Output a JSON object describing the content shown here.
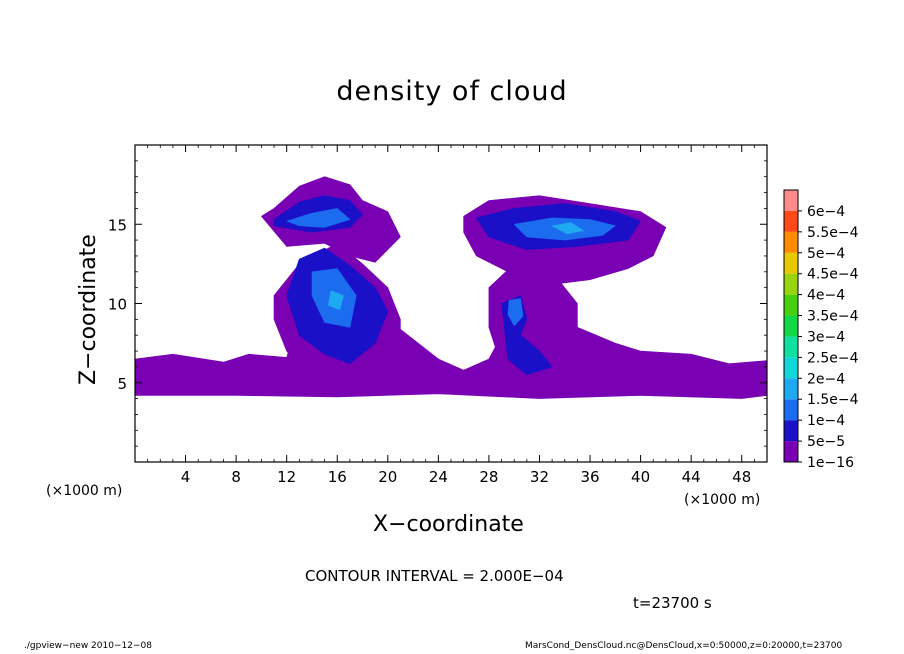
{
  "title": "density of cloud",
  "xlabel": "X−coordinate",
  "ylabel": "Z−coordinate",
  "x_unit_left": "(×1000 m)",
  "x_unit_right": "(×1000 m)",
  "contour_interval": "CONTOUR INTERVAL = 2.000E−04",
  "time_label": "t=23700 s",
  "footer_left": "./gpview−new   2010−12−08",
  "footer_right": "MarsCond_DensCloud.nc@DensCloud,x=0:50000,z=0:20000,t=23700",
  "chart_data": {
    "type": "heatmap",
    "title": "density of cloud",
    "xlabel": "X−coordinate",
    "ylabel": "Z−coordinate",
    "xlim": [
      0,
      50
    ],
    "ylim": [
      0,
      20
    ],
    "xticks": [
      4,
      8,
      12,
      16,
      20,
      24,
      28,
      32,
      36,
      40,
      44,
      48
    ],
    "yticks": [
      5,
      10,
      15
    ],
    "colorbar": {
      "labels": [
        "1e−16",
        "5e−5",
        "1e−4",
        "1.5e−4",
        "2e−4",
        "2.5e−4",
        "3e−4",
        "3.5e−4",
        "4e−4",
        "4.5e−4",
        "5e−4",
        "5.5e−4",
        "6e−4"
      ],
      "colors": [
        "#7a00b4",
        "#1a10c8",
        "#1c6cf0",
        "#1eaaf0",
        "#10d8d8",
        "#10e0a0",
        "#12d848",
        "#48d010",
        "#98d410",
        "#e8c800",
        "#ff8c00",
        "#ff4a18",
        "#ff8a8a"
      ]
    },
    "regions": [
      {
        "level": "1e−16",
        "x": [
          0,
          3,
          7,
          9,
          12,
          13,
          16,
          20,
          24,
          26,
          28,
          30,
          32,
          35,
          38,
          40,
          44,
          47,
          50,
          50,
          48,
          40,
          32,
          24,
          16,
          8,
          0
        ],
        "z": [
          6.5,
          6.8,
          6.3,
          6.8,
          6.6,
          9.5,
          10.5,
          9.0,
          6.5,
          5.8,
          6.5,
          9.5,
          8.0,
          8.5,
          7.5,
          7.0,
          6.8,
          6.2,
          6.4,
          4.2,
          4.0,
          4.2,
          4.0,
          4.3,
          4.1,
          4.2,
          4.2
        ]
      },
      {
        "level": "1e−16",
        "x": [
          11,
          13,
          15,
          17,
          18,
          20,
          21,
          19,
          17,
          15,
          12,
          10
        ],
        "z": [
          16.0,
          17.4,
          18.0,
          17.5,
          16.5,
          15.8,
          14.2,
          12.6,
          13.0,
          13.8,
          13.6,
          15.5
        ]
      },
      {
        "level": "1e−16",
        "x": [
          11,
          13,
          16,
          18,
          20,
          21,
          21,
          19,
          17,
          14,
          12,
          11
        ],
        "z": [
          10.5,
          12.5,
          13.8,
          12.5,
          11.0,
          9.0,
          6.0,
          5.0,
          4.8,
          5.2,
          7.0,
          9.0
        ]
      },
      {
        "level": "1e−16",
        "x": [
          26,
          28,
          32,
          36,
          40,
          42,
          41,
          39,
          36,
          33,
          30,
          27,
          26
        ],
        "z": [
          15.5,
          16.5,
          16.8,
          16.3,
          15.8,
          14.8,
          13.0,
          12.2,
          11.5,
          11.2,
          11.8,
          13.0,
          14.5
        ]
      },
      {
        "level": "1e−16",
        "x": [
          28,
          30,
          33,
          35,
          35,
          33,
          31,
          29,
          28
        ],
        "z": [
          11.0,
          12.5,
          12.0,
          10.0,
          7.0,
          5.5,
          5.0,
          6.0,
          8.5
        ]
      },
      {
        "level": "5e−5",
        "x": [
          11,
          13,
          15,
          17,
          18,
          17,
          14,
          11
        ],
        "z": [
          15.3,
          16.4,
          16.8,
          16.5,
          15.6,
          14.8,
          14.5,
          14.9
        ]
      },
      {
        "level": "5e−5",
        "x": [
          13,
          15,
          17,
          19,
          20,
          19,
          17,
          15,
          13,
          12
        ],
        "z": [
          12.8,
          13.5,
          12.4,
          11.0,
          9.5,
          7.5,
          6.2,
          6.8,
          8.0,
          10.5
        ]
      },
      {
        "level": "5e−5",
        "x": [
          27,
          30,
          34,
          38,
          40,
          39,
          35,
          31,
          28
        ],
        "z": [
          15.4,
          16.0,
          16.3,
          15.8,
          15.2,
          14.0,
          13.6,
          13.4,
          14.2
        ]
      },
      {
        "level": "5e−5",
        "x": [
          29,
          30.5,
          31,
          30.5,
          32,
          33,
          31,
          29.5
        ],
        "z": [
          10.0,
          10.5,
          9.0,
          8.0,
          7.0,
          6.0,
          5.5,
          6.5
        ]
      },
      {
        "level": "1e−4",
        "x": [
          12,
          14,
          16,
          17,
          15,
          13
        ],
        "z": [
          15.2,
          15.7,
          16.0,
          15.3,
          14.8,
          14.9
        ]
      },
      {
        "level": "1e−4",
        "x": [
          14,
          16,
          17.5,
          17,
          15,
          14
        ],
        "z": [
          12.0,
          12.2,
          10.5,
          8.5,
          8.8,
          10.5
        ]
      },
      {
        "level": "1e−4",
        "x": [
          30,
          33,
          36,
          38,
          37,
          34,
          31
        ],
        "z": [
          15.0,
          15.4,
          15.3,
          14.9,
          14.3,
          14.0,
          14.2
        ]
      },
      {
        "level": "1e−4",
        "x": [
          29.6,
          30.5,
          30.7,
          30.0,
          29.5
        ],
        "z": [
          10.2,
          10.3,
          9.2,
          8.6,
          9.3
        ]
      },
      {
        "level": "1.5e−4",
        "x": [
          15.5,
          16.5,
          16.2,
          15.3
        ],
        "z": [
          10.8,
          10.5,
          9.6,
          9.9
        ]
      },
      {
        "level": "1.5e−4",
        "x": [
          33,
          34.5,
          35.5,
          34.2
        ],
        "z": [
          14.9,
          15.1,
          14.6,
          14.4
        ]
      }
    ]
  }
}
